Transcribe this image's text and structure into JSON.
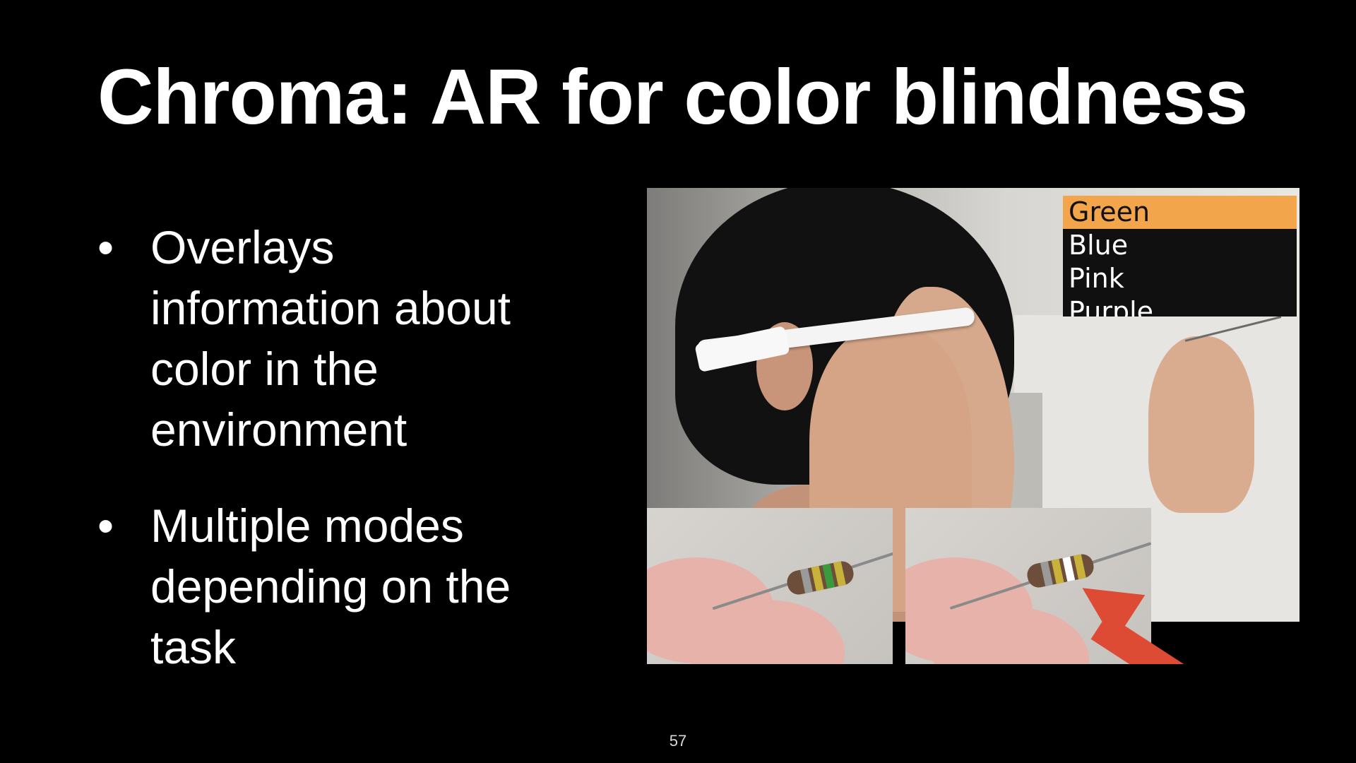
{
  "slide": {
    "title": "Chroma: AR for color blindness",
    "bullets": [
      {
        "marker": "•",
        "text": "Overlays information about color in the environment"
      },
      {
        "marker": "•",
        "text": "Multiple modes depending on the task"
      }
    ],
    "page_number": "57"
  },
  "figure": {
    "menu": {
      "items": [
        {
          "label": "Green",
          "selected": true
        },
        {
          "label": "Blue",
          "selected": false
        },
        {
          "label": "Pink",
          "selected": false
        },
        {
          "label": "Purple",
          "selected": false
        }
      ]
    }
  },
  "colors": {
    "background": "#000000",
    "text": "#ffffff",
    "menu_highlight": "#f2a54a",
    "arrow": "#de4b35"
  }
}
